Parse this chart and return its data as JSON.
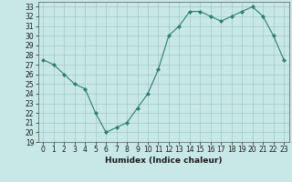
{
  "x": [
    0,
    1,
    2,
    3,
    4,
    5,
    6,
    7,
    8,
    9,
    10,
    11,
    12,
    13,
    14,
    15,
    16,
    17,
    18,
    19,
    20,
    21,
    22,
    23
  ],
  "y": [
    27.5,
    27.0,
    26.0,
    25.0,
    24.5,
    22.0,
    20.0,
    20.5,
    21.0,
    22.5,
    24.0,
    26.5,
    30.0,
    31.0,
    32.5,
    32.5,
    32.0,
    31.5,
    32.0,
    32.5,
    33.0,
    32.0,
    30.0,
    27.5
  ],
  "xlabel": "Humidex (Indice chaleur)",
  "line_color": "#2e7d6e",
  "marker": "D",
  "marker_size": 2,
  "bg_color": "#c8e8e8",
  "grid_color": "#a0c8c8",
  "ylim": [
    19,
    33.5
  ],
  "xlim": [
    -0.5,
    23.5
  ],
  "yticks": [
    19,
    20,
    21,
    22,
    23,
    24,
    25,
    26,
    27,
    28,
    29,
    30,
    31,
    32,
    33
  ],
  "xticks": [
    0,
    1,
    2,
    3,
    4,
    5,
    6,
    7,
    8,
    9,
    10,
    11,
    12,
    13,
    14,
    15,
    16,
    17,
    18,
    19,
    20,
    21,
    22,
    23
  ],
  "tick_fontsize": 5.5,
  "xlabel_fontsize": 6.5
}
